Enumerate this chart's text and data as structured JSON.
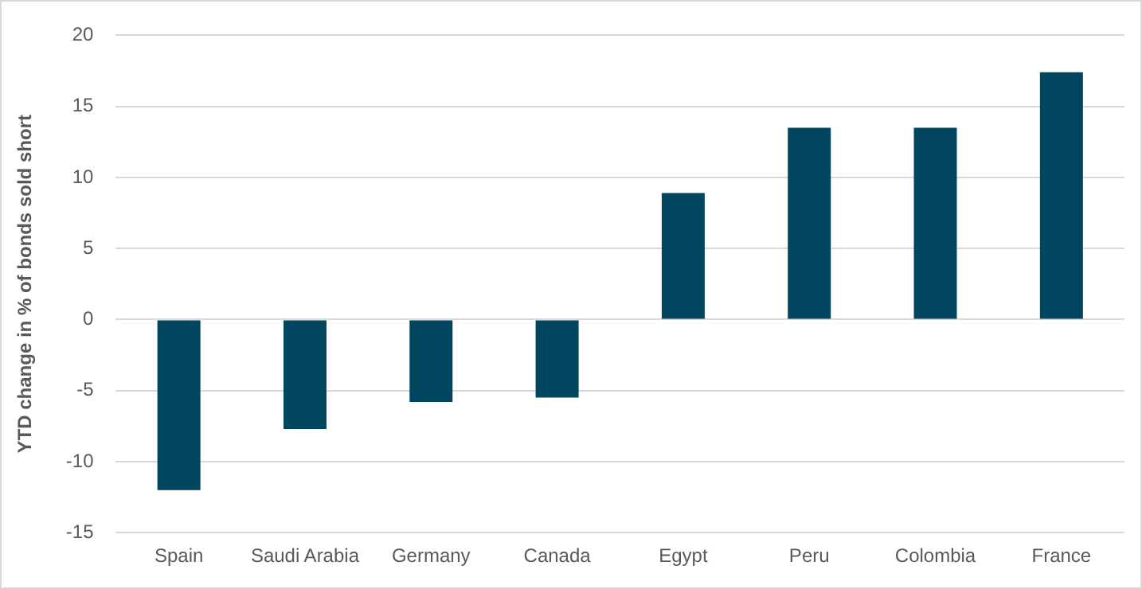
{
  "chart_data": {
    "type": "bar",
    "ylabel": "YTD change in % of bonds sold short",
    "categories": [
      "Spain",
      "Saudi Arabia",
      "Germany",
      "Canada",
      "Egypt",
      "Peru",
      "Colombia",
      "France"
    ],
    "values": [
      -12.0,
      -7.7,
      -5.8,
      -5.5,
      8.9,
      13.5,
      13.5,
      17.4
    ],
    "color": "#00465e",
    "ylim": [
      -15,
      20
    ],
    "yticks": [
      -15,
      -10,
      -5,
      0,
      5,
      10,
      15,
      20
    ],
    "grid": "y",
    "legend": false
  }
}
